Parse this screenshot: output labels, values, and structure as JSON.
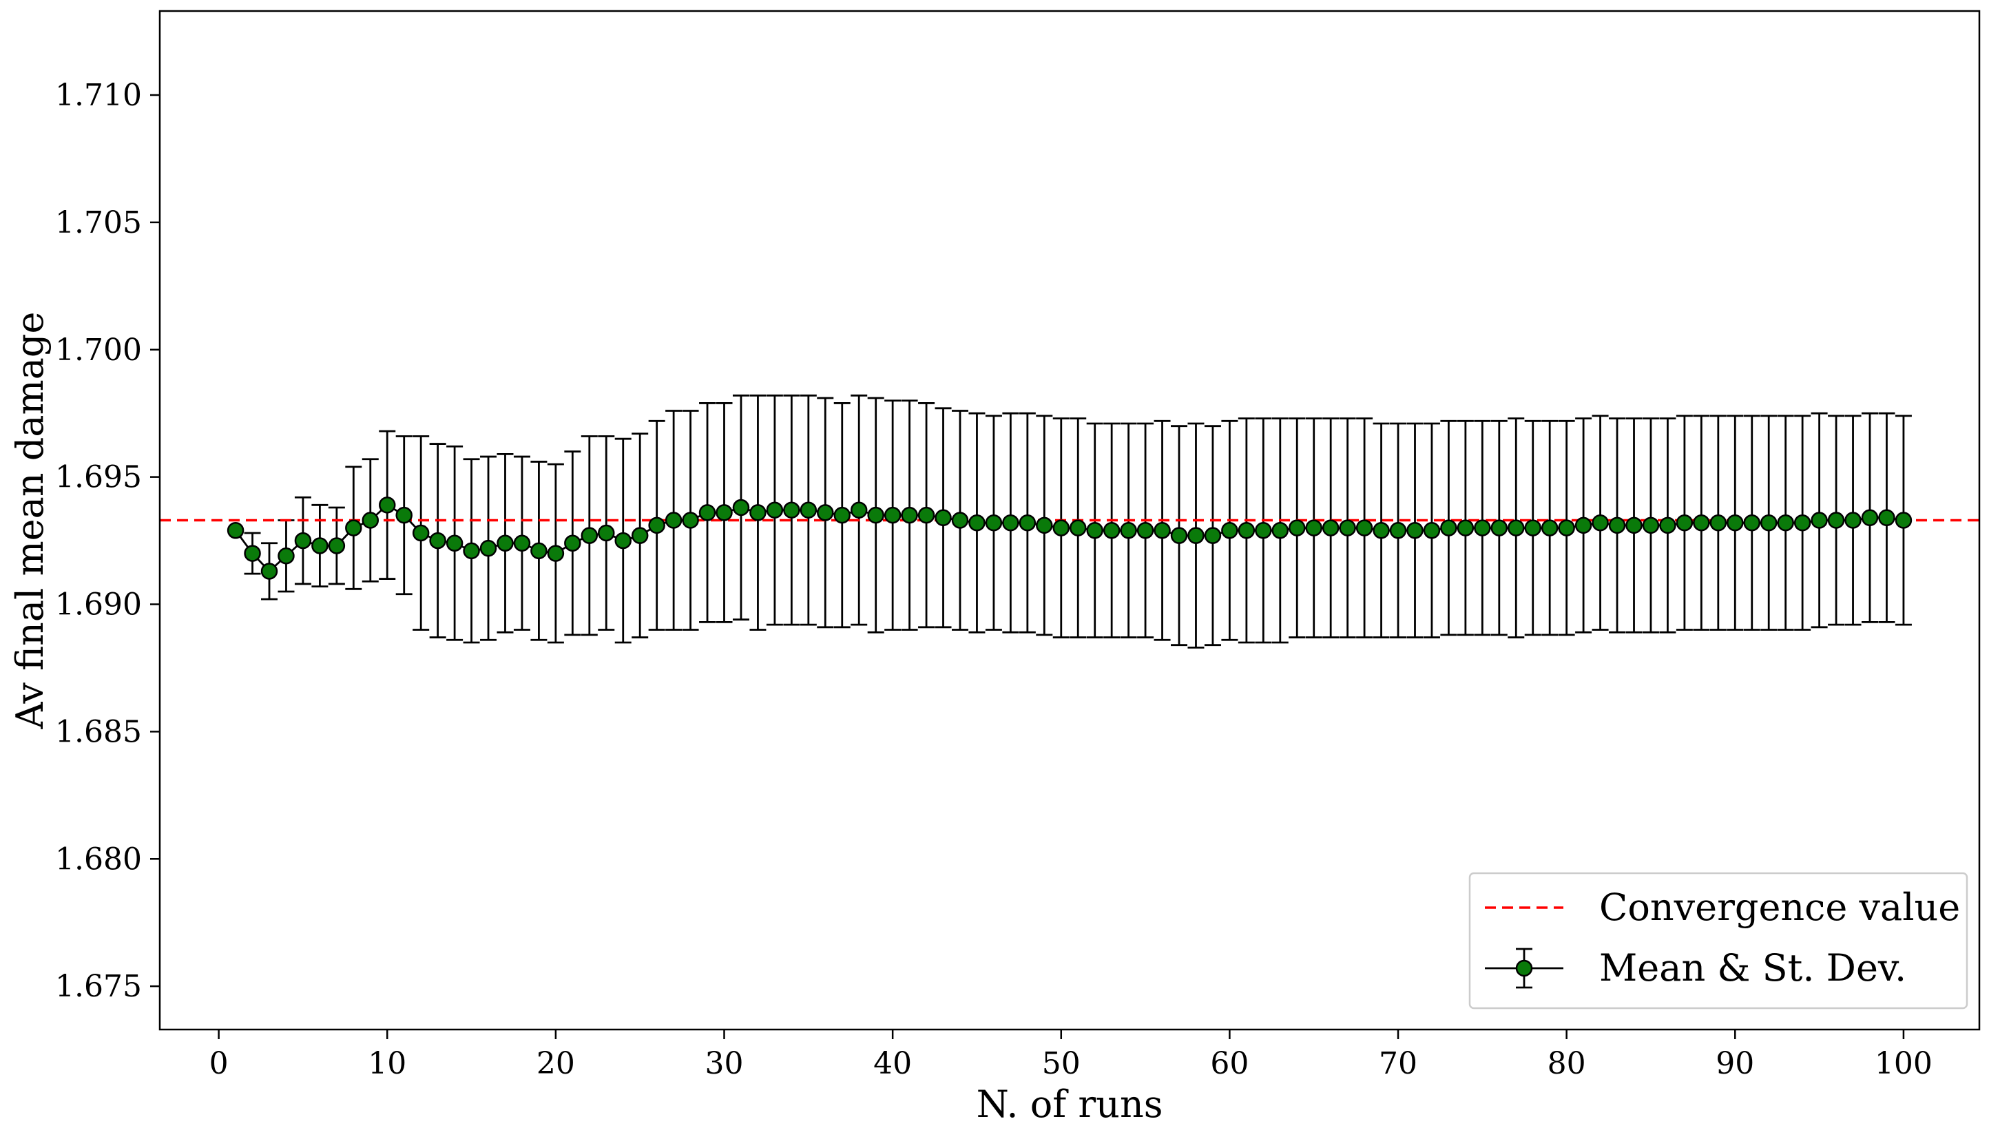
{
  "chart_data": {
    "type": "scatter",
    "xlabel": "N. of runs",
    "ylabel": "Av final mean damage",
    "xlim": [
      -3.5,
      104.5
    ],
    "ylim": [
      1.6733,
      1.7133
    ],
    "xticks": [
      0,
      10,
      20,
      30,
      40,
      50,
      60,
      70,
      80,
      90,
      100
    ],
    "yticks": [
      1.675,
      1.68,
      1.685,
      1.69,
      1.695,
      1.7,
      1.705,
      1.71
    ],
    "ytick_labels": [
      "1.675",
      "1.680",
      "1.685",
      "1.690",
      "1.695",
      "1.700",
      "1.705",
      "1.710"
    ],
    "grid": false,
    "legend_position": "lower right",
    "colors": {
      "marker_fill": "#0a7a0a",
      "marker_edge": "#000000",
      "errorbar": "#000000",
      "convergence": "#ff0000"
    },
    "convergence_value": 1.6933,
    "series": [
      {
        "name": "Mean & St. Dev.",
        "x": [
          1,
          2,
          3,
          4,
          5,
          6,
          7,
          8,
          9,
          10,
          11,
          12,
          13,
          14,
          15,
          16,
          17,
          18,
          19,
          20,
          21,
          22,
          23,
          24,
          25,
          26,
          27,
          28,
          29,
          30,
          31,
          32,
          33,
          34,
          35,
          36,
          37,
          38,
          39,
          40,
          41,
          42,
          43,
          44,
          45,
          46,
          47,
          48,
          49,
          50,
          51,
          52,
          53,
          54,
          55,
          56,
          57,
          58,
          59,
          60,
          61,
          62,
          63,
          64,
          65,
          66,
          67,
          68,
          69,
          70,
          71,
          72,
          73,
          74,
          75,
          76,
          77,
          78,
          79,
          80,
          81,
          82,
          83,
          84,
          85,
          86,
          87,
          88,
          89,
          90,
          91,
          92,
          93,
          94,
          95,
          96,
          97,
          98,
          99,
          100
        ],
        "mean": [
          1.6929,
          1.692,
          1.6913,
          1.6919,
          1.6925,
          1.6923,
          1.6923,
          1.693,
          1.6933,
          1.6939,
          1.6935,
          1.6928,
          1.6925,
          1.6924,
          1.6921,
          1.6922,
          1.6924,
          1.6924,
          1.6921,
          1.692,
          1.6924,
          1.6927,
          1.6928,
          1.6925,
          1.6927,
          1.6931,
          1.6933,
          1.6933,
          1.6936,
          1.6936,
          1.6938,
          1.6936,
          1.6937,
          1.6937,
          1.6937,
          1.6936,
          1.6935,
          1.6937,
          1.6935,
          1.6935,
          1.6935,
          1.6935,
          1.6934,
          1.6933,
          1.6932,
          1.6932,
          1.6932,
          1.6932,
          1.6931,
          1.693,
          1.693,
          1.6929,
          1.6929,
          1.6929,
          1.6929,
          1.6929,
          1.6927,
          1.6927,
          1.6927,
          1.6929,
          1.6929,
          1.6929,
          1.6929,
          1.693,
          1.693,
          1.693,
          1.693,
          1.693,
          1.6929,
          1.6929,
          1.6929,
          1.6929,
          1.693,
          1.693,
          1.693,
          1.693,
          1.693,
          1.693,
          1.693,
          1.693,
          1.6931,
          1.6932,
          1.6931,
          1.6931,
          1.6931,
          1.6931,
          1.6932,
          1.6932,
          1.6932,
          1.6932,
          1.6932,
          1.6932,
          1.6932,
          1.6932,
          1.6933,
          1.6933,
          1.6933,
          1.6934,
          1.6934,
          1.6933
        ],
        "std": [
          0,
          0.0008,
          0.0011,
          0.0014,
          0.0017,
          0.0016,
          0.0015,
          0.0024,
          0.0024,
          0.0029,
          0.0031,
          0.0038,
          0.0038,
          0.0038,
          0.0036,
          0.0036,
          0.0035,
          0.0034,
          0.0035,
          0.0035,
          0.0036,
          0.0039,
          0.0038,
          0.004,
          0.004,
          0.0041,
          0.0043,
          0.0043,
          0.0043,
          0.0043,
          0.0044,
          0.0046,
          0.0045,
          0.0045,
          0.0045,
          0.0045,
          0.0044,
          0.0045,
          0.0046,
          0.0045,
          0.0045,
          0.0044,
          0.0043,
          0.0043,
          0.0043,
          0.0042,
          0.0043,
          0.0043,
          0.0043,
          0.0043,
          0.0043,
          0.0042,
          0.0042,
          0.0042,
          0.0042,
          0.0043,
          0.0043,
          0.0044,
          0.0043,
          0.0043,
          0.0044,
          0.0044,
          0.0044,
          0.0043,
          0.0043,
          0.0043,
          0.0043,
          0.0043,
          0.0042,
          0.0042,
          0.0042,
          0.0042,
          0.0042,
          0.0042,
          0.0042,
          0.0042,
          0.0043,
          0.0042,
          0.0042,
          0.0042,
          0.0042,
          0.0042,
          0.0042,
          0.0042,
          0.0042,
          0.0042,
          0.0042,
          0.0042,
          0.0042,
          0.0042,
          0.0042,
          0.0042,
          0.0042,
          0.0042,
          0.0042,
          0.0041,
          0.0041,
          0.0041,
          0.0041,
          0.0041
        ]
      }
    ],
    "legend": [
      {
        "label": "Convergence value",
        "style": "dashed-line"
      },
      {
        "label": "Mean & St. Dev.",
        "style": "errorbar-marker"
      }
    ]
  }
}
